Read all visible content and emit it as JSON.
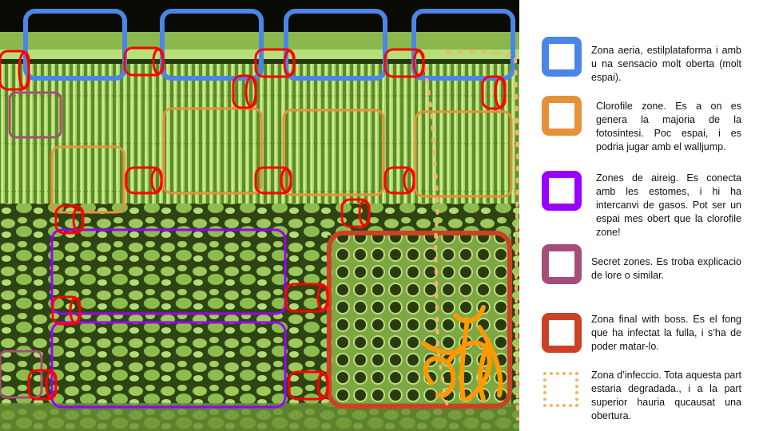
{
  "colors": {
    "aerial": "#4a86e8",
    "chlorophyll": "#e69138",
    "aeration": "#9900ff",
    "secret": "#a64d79",
    "boss": "#cc4125",
    "infection": "#f6b26b",
    "connector": "#ff0000",
    "fungus": "#ff9900"
  },
  "legend": [
    {
      "key": "aerial",
      "style": "solid",
      "text": "Zona aeria, estilplataforma i amb u na sensacio molt oberta (molt espai)."
    },
    {
      "key": "chlorophyll",
      "style": "solid",
      "text": "Clorofile zone. Es a on es genera la majoria de la fotosintesi. Poc espai, i es podria jugar amb el walljump."
    },
    {
      "key": "aeration",
      "style": "solid",
      "text": "Zones de aireig. Es conecta amb les estomes, i hi ha intercanvi de gasos. Pot ser un espai mes obert que la clorofile zone!"
    },
    {
      "key": "secret",
      "style": "solid",
      "text": "Secret zones. Es troba explicacio de lore o similar."
    },
    {
      "key": "boss",
      "style": "solid",
      "text": "Zona final with boss. Es el fong que ha infectat la fulla, i s’ha de poder matar-lo."
    },
    {
      "key": "infection",
      "style": "dotted",
      "text": "Zona d’infeccio. Tota aquesta part estaria degradada., i a la part superior hauria qucausat una obertura."
    }
  ]
}
